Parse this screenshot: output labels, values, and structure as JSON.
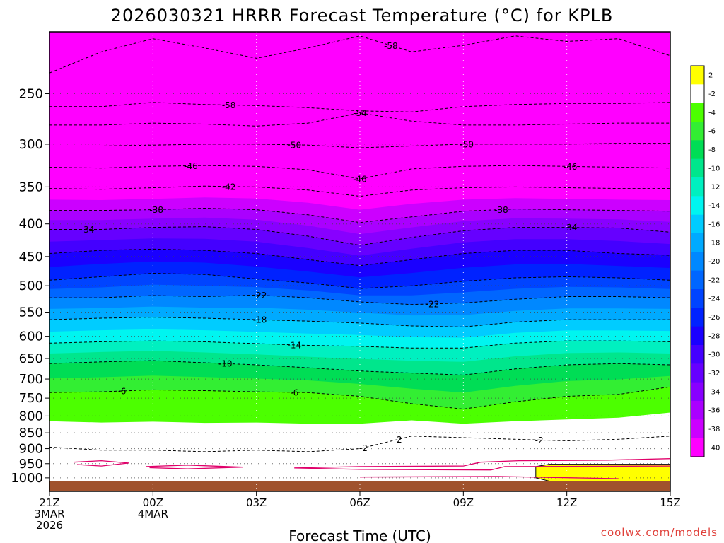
{
  "chart_data": {
    "type": "heatmap",
    "title": "2026030321 HRRR Forecast Temperature (°C) for KPLB",
    "xlabel": "Forecast Time (UTC)",
    "ylabel": "",
    "credit": "coolwx.com/models",
    "y_scale": "log",
    "ylim": [
      1050,
      200
    ],
    "y_ticks": [
      250,
      300,
      350,
      400,
      450,
      500,
      550,
      600,
      650,
      700,
      750,
      800,
      850,
      900,
      950,
      1000
    ],
    "xlim": [
      0,
      18
    ],
    "x_ticks": [
      {
        "x": 0,
        "lines": [
          "21Z",
          "3MAR",
          "2026"
        ]
      },
      {
        "x": 3,
        "lines": [
          "00Z",
          "4MAR"
        ]
      },
      {
        "x": 6,
        "lines": [
          "03Z"
        ]
      },
      {
        "x": 9,
        "lines": [
          "06Z"
        ]
      },
      {
        "x": 12,
        "lines": [
          "09Z"
        ]
      },
      {
        "x": 15,
        "lines": [
          "12Z"
        ]
      },
      {
        "x": 18,
        "lines": [
          "15Z"
        ]
      }
    ],
    "grid": true,
    "colorbar": {
      "position": "right",
      "levels": [
        2,
        -2,
        -4,
        -6,
        -8,
        -10,
        -12,
        -14,
        -16,
        -18,
        -20,
        -22,
        -24,
        -26,
        -28,
        -30,
        -32,
        -34,
        -36,
        -38,
        -40
      ],
      "colors": [
        "#ffff00",
        "#ffffff",
        "#4cff00",
        "#33ee33",
        "#00dd55",
        "#00e68c",
        "#00f0c0",
        "#00f5f0",
        "#00ccff",
        "#00aaff",
        "#0088ff",
        "#0066ff",
        "#0044ff",
        "#0022ff",
        "#1a00ff",
        "#4400ff",
        "#6600ff",
        "#8800ff",
        "#aa00ff",
        "#cc00ff",
        "#ff00ff"
      ],
      "ground_color": "#a0522d"
    },
    "x_nodes": [
      0,
      1.5,
      3,
      4.5,
      6,
      7.5,
      9,
      10.5,
      12,
      13.5,
      15,
      16.5,
      18
    ],
    "isotherms": [
      {
        "value": -58,
        "p": [
          232,
          215,
          205,
          212,
          220,
          212,
          203,
          215,
          210,
          203,
          207,
          205,
          218
        ],
        "labels": [
          {
            "x": 9.9,
            "text": "-58"
          }
        ]
      },
      {
        "value": -58,
        "p": [
          262,
          262,
          258,
          260,
          261,
          263,
          266,
          267,
          262,
          260,
          259,
          259,
          258
        ],
        "labels": [
          {
            "x": 5.2,
            "text": "-58"
          }
        ]
      },
      {
        "value": -54,
        "p": [
          280,
          280,
          278,
          279,
          281,
          278,
          268,
          276,
          280,
          280,
          279,
          278,
          278
        ],
        "labels": [
          {
            "x": 9.0,
            "text": "-54"
          }
        ]
      },
      {
        "value": -50,
        "p": [
          302,
          302,
          301,
          300,
          300,
          301,
          304,
          302,
          300,
          300,
          300,
          299,
          299
        ],
        "labels": [
          {
            "x": 7.1,
            "text": "-50"
          },
          {
            "x": 12.1,
            "text": "-50"
          }
        ]
      },
      {
        "value": -46,
        "p": [
          326,
          327,
          325,
          324,
          325,
          329,
          340,
          328,
          325,
          324,
          325,
          326,
          327
        ],
        "labels": [
          {
            "x": 4.1,
            "text": "-46"
          },
          {
            "x": 9.0,
            "text": "-46"
          },
          {
            "x": 15.1,
            "text": "-46"
          }
        ]
      },
      {
        "value": -42,
        "p": [
          352,
          353,
          351,
          349,
          350,
          354,
          362,
          354,
          351,
          350,
          351,
          352,
          352
        ],
        "labels": [
          {
            "x": 5.2,
            "text": "-42"
          }
        ]
      },
      {
        "value": -38,
        "p": [
          381,
          381,
          380,
          378,
          380,
          387,
          398,
          390,
          382,
          379,
          380,
          381,
          382
        ],
        "labels": [
          {
            "x": 3.1,
            "text": "-38"
          },
          {
            "x": 13.1,
            "text": "-38"
          }
        ]
      },
      {
        "value": -34,
        "p": [
          408,
          408,
          405,
          404,
          408,
          418,
          432,
          420,
          410,
          405,
          405,
          406,
          412
        ],
        "labels": [
          {
            "x": 1.1,
            "text": "-34"
          },
          {
            "x": 15.1,
            "text": "-34"
          }
        ]
      },
      {
        "value": -30,
        "p": [
          445,
          440,
          438,
          440,
          445,
          455,
          465,
          455,
          445,
          440,
          440,
          445,
          448
        ],
        "labels": []
      },
      {
        "value": -26,
        "p": [
          490,
          484,
          478,
          480,
          488,
          495,
          505,
          500,
          492,
          486,
          484,
          486,
          490
        ],
        "labels": []
      },
      {
        "value": -22,
        "p": [
          522,
          522,
          518,
          520,
          517,
          522,
          530,
          535,
          532,
          525,
          520,
          520,
          522
        ],
        "labels": [
          {
            "x": 6.1,
            "text": "-22"
          },
          {
            "x": 11.1,
            "text": "-22"
          }
        ]
      },
      {
        "value": -18,
        "p": [
          565,
          562,
          560,
          562,
          565,
          568,
          572,
          578,
          580,
          570,
          565,
          565,
          565
        ],
        "labels": [
          {
            "x": 6.1,
            "text": "-18"
          }
        ]
      },
      {
        "value": -14,
        "p": [
          615,
          612,
          610,
          612,
          616,
          620,
          622,
          626,
          626,
          615,
          610,
          610,
          612
        ],
        "labels": [
          {
            "x": 7.1,
            "text": "-14"
          }
        ]
      },
      {
        "value": -10,
        "p": [
          662,
          658,
          655,
          660,
          665,
          672,
          680,
          685,
          690,
          675,
          665,
          662,
          665
        ],
        "labels": [
          {
            "x": 5.1,
            "text": "-10"
          }
        ]
      },
      {
        "value": -6,
        "p": [
          735,
          733,
          728,
          730,
          733,
          735,
          745,
          765,
          780,
          760,
          745,
          740,
          720
        ],
        "labels": [
          {
            "x": 2.1,
            "text": "-6"
          },
          {
            "x": 7.1,
            "text": "-6"
          }
        ]
      },
      {
        "value": -2,
        "p": [
          895,
          905,
          905,
          910,
          905,
          910,
          900,
          860,
          865,
          870,
          875,
          870,
          860
        ],
        "labels": [
          {
            "x": 14.2,
            "text": "-2"
          },
          {
            "x": 10.1,
            "text": "-2"
          },
          {
            "x": 9.1,
            "text": "-2"
          }
        ]
      }
    ]
  }
}
